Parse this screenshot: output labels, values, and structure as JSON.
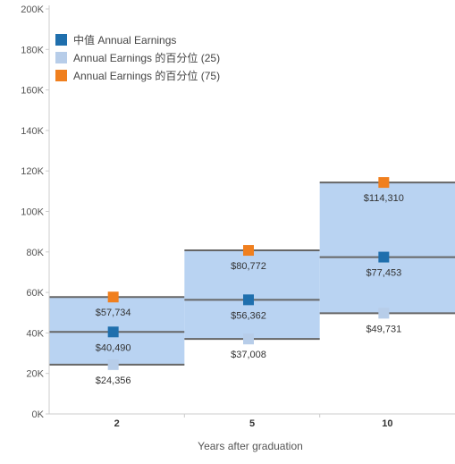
{
  "chart_data": {
    "type": "box",
    "categories": [
      "2",
      "5",
      "10"
    ],
    "xlabel": "Years after graduation",
    "ylabel": "",
    "ylim": [
      0,
      200000
    ],
    "yticks": [
      {
        "value": 0,
        "label": "0K"
      },
      {
        "value": 20000,
        "label": "20K"
      },
      {
        "value": 40000,
        "label": "40K"
      },
      {
        "value": 60000,
        "label": "60K"
      },
      {
        "value": 80000,
        "label": "80K"
      },
      {
        "value": 100000,
        "label": "100K"
      },
      {
        "value": 120000,
        "label": "120K"
      },
      {
        "value": 140000,
        "label": "140K"
      },
      {
        "value": 160000,
        "label": "160K"
      },
      {
        "value": 180000,
        "label": "180K"
      },
      {
        "value": 200000,
        "label": "200K"
      }
    ],
    "grid": false,
    "legend_position": "top-left",
    "series": [
      {
        "name": "中值 Annual Earnings",
        "color": "#1f6fad",
        "values": [
          40490,
          56362,
          77453
        ],
        "labels": [
          "$40,490",
          "$56,362",
          "$77,453"
        ]
      },
      {
        "name": "Annual Earnings 的百分位 (25)",
        "color": "#b7cde9",
        "values": [
          24356,
          37008,
          49731
        ],
        "labels": [
          "$24,356",
          "$37,008",
          "$49,731"
        ]
      },
      {
        "name": "Annual Earnings 的百分位 (75)",
        "color": "#f07f1e",
        "values": [
          57734,
          80772,
          114310
        ],
        "labels": [
          "$57,734",
          "$80,772",
          "$114,310"
        ]
      }
    ],
    "band_fill": "#b9d3f2",
    "band_line": "#666666"
  }
}
